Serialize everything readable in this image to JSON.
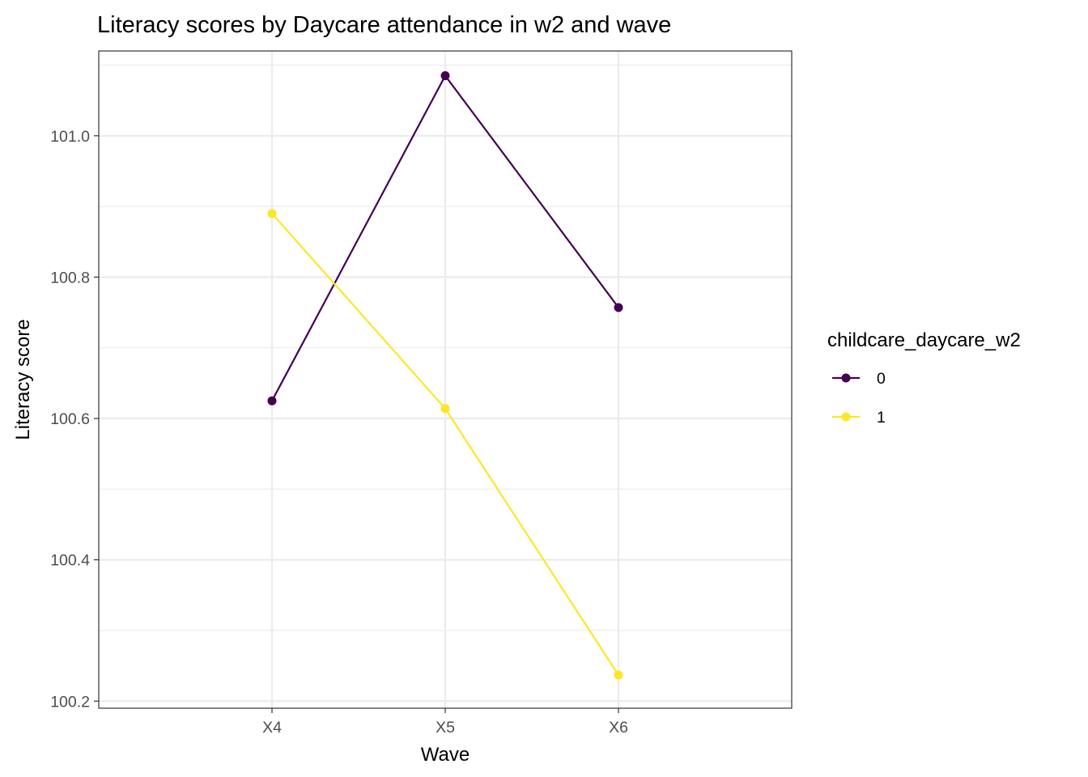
{
  "chart_data": {
    "type": "line",
    "title": "Literacy scores by Daycare attendance in w2 and wave",
    "xlabel": "Wave",
    "ylabel": "Literacy score",
    "categories": [
      "X4",
      "X5",
      "X6"
    ],
    "y_ticks": [
      100.2,
      100.4,
      100.6,
      100.8,
      101.0
    ],
    "y_tick_labels": [
      "100.2",
      "100.4",
      "100.6",
      "100.8",
      "101.0"
    ],
    "ylim": [
      100.19,
      101.12
    ],
    "grid": true,
    "legend": {
      "title": "childcare_daycare_w2",
      "placement": "right"
    },
    "series": [
      {
        "name": "0",
        "color": "#440154",
        "values": [
          100.625,
          101.085,
          100.757
        ]
      },
      {
        "name": "1",
        "color": "#FDE725",
        "values": [
          100.89,
          100.614,
          100.237
        ]
      }
    ]
  }
}
